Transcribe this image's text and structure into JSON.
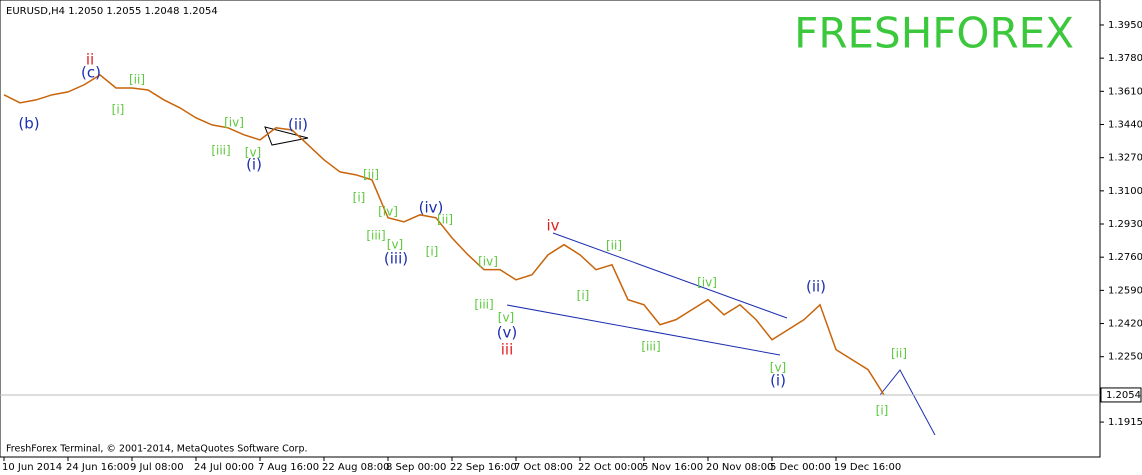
{
  "chart_data": {
    "type": "line",
    "title": "EURUSD,H4  1.2050 1.2055 1.2048 1.2054",
    "watermark": "FRESHFOREX",
    "footer": "FreshForex Terminal, © 2001-2014, MetaQuotes Software Corp.",
    "categories": [
      "10 Jun 2014",
      null,
      null,
      null,
      "24 Jun 16:00",
      null,
      null,
      null,
      "9 Jul 08:00",
      null,
      null,
      null,
      "24 Jul 00:00",
      null,
      null,
      null,
      "7 Aug 16:00",
      null,
      null,
      null,
      "22 Aug 08:00",
      null,
      null,
      null,
      "8 Sep 00:00",
      null,
      null,
      null,
      "22 Sep 16:00",
      null,
      null,
      null,
      "7 Oct 08:00",
      null,
      null,
      null,
      "22 Oct 00:00",
      null,
      null,
      null,
      "5 Nov 16:00",
      null,
      null,
      null,
      "20 Nov 08:00",
      null,
      null,
      null,
      "5 Dec 00:00",
      null,
      null,
      null,
      "19 Dec 16:00",
      null,
      null,
      null
    ],
    "series": [
      {
        "name": "EURUSD,H4",
        "color": "#c8640a",
        "values": [
          1.3592,
          1.3551,
          1.3566,
          1.3592,
          1.3607,
          1.3643,
          1.3694,
          1.3627,
          1.3627,
          1.3617,
          1.3566,
          1.3525,
          1.3474,
          1.3438,
          1.3423,
          1.3387,
          1.3361,
          1.3423,
          1.3412,
          1.3336,
          1.3259,
          1.3197,
          1.3182,
          1.3156,
          1.2962,
          1.2941,
          1.2977,
          1.2962,
          1.2859,
          1.2772,
          1.2696,
          1.2696,
          1.2644,
          1.267,
          1.2772,
          1.2824,
          1.2772,
          1.2696,
          1.2721,
          1.2542,
          1.2516,
          1.2414,
          1.244,
          1.2491,
          1.2542,
          1.2465,
          1.2516,
          1.244,
          1.2337,
          1.2388,
          1.244,
          1.2516,
          1.2286,
          1.2235,
          1.2184,
          1.2054
        ]
      }
    ],
    "ylim": [
      1.1736,
      1.4078
    ],
    "yticks": [
      {
        "value": 1.395,
        "label": "1.3950"
      },
      {
        "value": 1.378,
        "label": "1.3780"
      },
      {
        "value": 1.361,
        "label": "1.3610"
      },
      {
        "value": 1.344,
        "label": "1.3440"
      },
      {
        "value": 1.327,
        "label": "1.3270"
      },
      {
        "value": 1.31,
        "label": "1.3100"
      },
      {
        "value": 1.293,
        "label": "1.2930"
      },
      {
        "value": 1.276,
        "label": "1.2760"
      },
      {
        "value": 1.259,
        "label": "1.2590"
      },
      {
        "value": 1.242,
        "label": "1.2420"
      },
      {
        "value": 1.225,
        "label": "1.2250"
      },
      {
        "value": 1.1915,
        "label": "1.1915"
      }
    ],
    "current_price": {
      "value": 1.2054,
      "label": "1.2054"
    },
    "annotations": [
      {
        "text": "ii",
        "color": "#e02020"
      },
      {
        "text": "iv",
        "color": "#e02020"
      },
      {
        "text": "iii",
        "color": "#e02020"
      },
      {
        "text": "(c)",
        "color": "#1c2fb0"
      },
      {
        "text": "(b)",
        "color": "#1c2fb0"
      },
      {
        "text": "(ii)",
        "color": "#1c2fb0"
      },
      {
        "text": "(i)",
        "color": "#1c2fb0"
      },
      {
        "text": "(iv)",
        "color": "#1c2fb0"
      },
      {
        "text": "(iii)",
        "color": "#1c2fb0"
      },
      {
        "text": "(v)",
        "color": "#1c2fb0"
      },
      {
        "text": "(ii)",
        "color": "#1c2fb0"
      },
      {
        "text": "(i)",
        "color": "#1c2fb0"
      },
      {
        "text": "[ii]",
        "color": "#5cc83c"
      },
      {
        "text": "[i]",
        "color": "#5cc83c"
      },
      {
        "text": "[iv]",
        "color": "#5cc83c"
      },
      {
        "text": "[iii]",
        "color": "#5cc83c"
      },
      {
        "text": "[v]",
        "color": "#5cc83c"
      },
      {
        "text": "[ii]",
        "color": "#5cc83c"
      },
      {
        "text": "[i]",
        "color": "#5cc83c"
      },
      {
        "text": "[iv]",
        "color": "#5cc83c"
      },
      {
        "text": "[ii]",
        "color": "#5cc83c"
      },
      {
        "text": "[iii]",
        "color": "#5cc83c"
      },
      {
        "text": "[v]",
        "color": "#5cc83c"
      },
      {
        "text": "[i]",
        "color": "#5cc83c"
      },
      {
        "text": "[iv]",
        "color": "#5cc83c"
      },
      {
        "text": "[iii]",
        "color": "#5cc83c"
      },
      {
        "text": "[v]",
        "color": "#5cc83c"
      },
      {
        "text": "[ii]",
        "color": "#5cc83c"
      },
      {
        "text": "[i]",
        "color": "#5cc83c"
      },
      {
        "text": "[iv]",
        "color": "#5cc83c"
      },
      {
        "text": "[iii]",
        "color": "#5cc83c"
      },
      {
        "text": "[v]",
        "color": "#5cc83c"
      },
      {
        "text": "[ii]",
        "color": "#5cc83c"
      },
      {
        "text": "[i]",
        "color": "#5cc83c"
      }
    ]
  }
}
